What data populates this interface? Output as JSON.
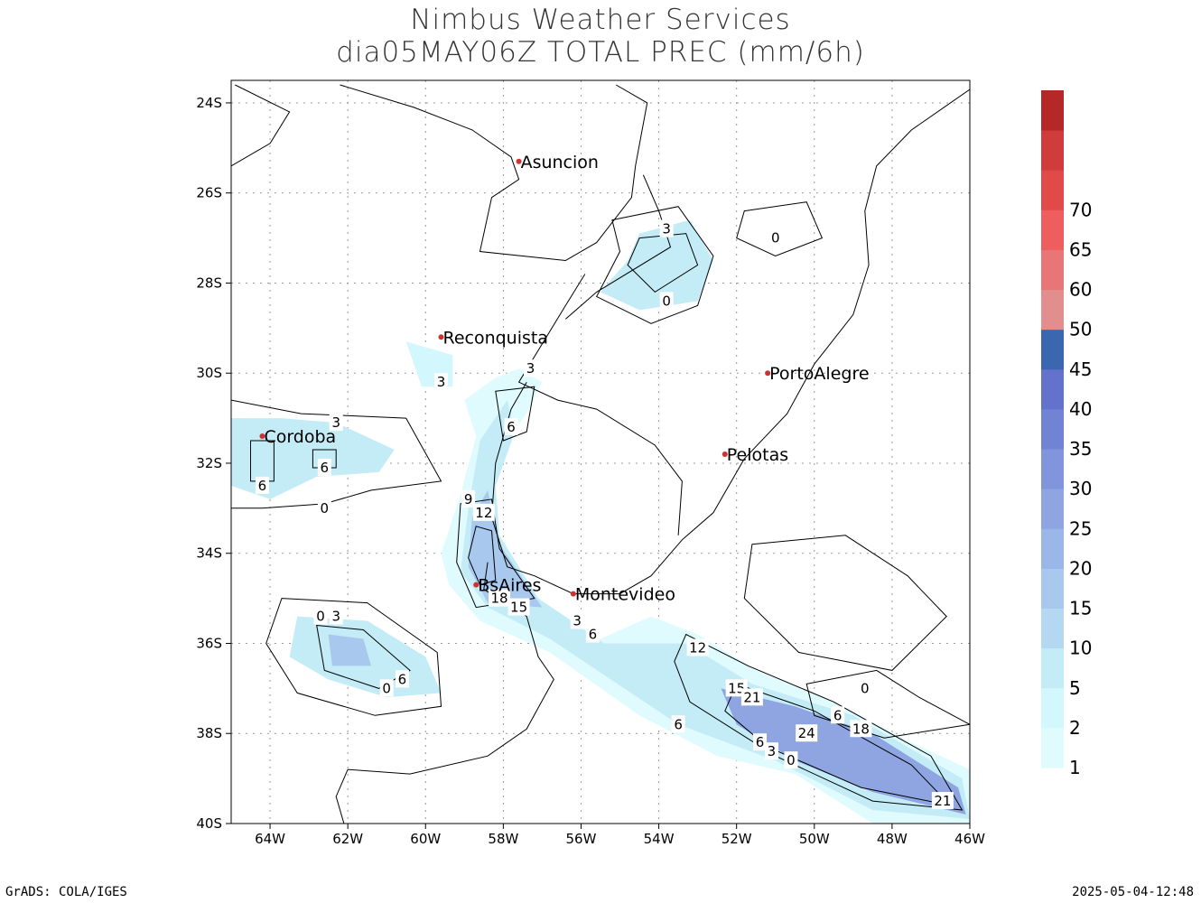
{
  "title": {
    "line1": "Nimbus Weather Services",
    "line2": "dia05MAY06Z TOTAL PREC (mm/6h)"
  },
  "axes": {
    "lat_ticks": [
      "24S",
      "26S",
      "28S",
      "30S",
      "32S",
      "34S",
      "36S",
      "38S",
      "40S"
    ],
    "lon_ticks": [
      "64W",
      "62W",
      "60W",
      "58W",
      "56W",
      "54W",
      "52W",
      "50W",
      "48W",
      "46W"
    ],
    "lat_range": [
      -40,
      -23.5
    ],
    "lon_range": [
      -65,
      -46
    ],
    "grid": "dotted"
  },
  "cities": [
    {
      "name": "Asuncion",
      "lon": -57.6,
      "lat": -25.3
    },
    {
      "name": "Reconquista",
      "lon": -59.6,
      "lat": -29.2
    },
    {
      "name": "PortoAlegre",
      "lon": -51.2,
      "lat": -30.0
    },
    {
      "name": "Cordoba",
      "lon": -64.2,
      "lat": -31.4
    },
    {
      "name": "Pelotas",
      "lon": -52.3,
      "lat": -31.8
    },
    {
      "name": "BsAires",
      "lon": -58.7,
      "lat": -34.7
    },
    {
      "name": "Montevideo",
      "lon": -56.2,
      "lat": -34.9
    }
  ],
  "contour_labels": [
    {
      "text": "3",
      "lon": -53.8,
      "lat": -26.8
    },
    {
      "text": "0",
      "lon": -51.0,
      "lat": -27.0
    },
    {
      "text": "0",
      "lon": -53.8,
      "lat": -28.4
    },
    {
      "text": "3",
      "lon": -57.3,
      "lat": -29.9
    },
    {
      "text": "3",
      "lon": -59.6,
      "lat": -30.2
    },
    {
      "text": "3",
      "lon": -62.3,
      "lat": -31.1
    },
    {
      "text": "6",
      "lon": -57.8,
      "lat": -31.2
    },
    {
      "text": "6",
      "lon": -64.2,
      "lat": -32.5
    },
    {
      "text": "6",
      "lon": -62.6,
      "lat": -32.1
    },
    {
      "text": "0",
      "lon": -62.6,
      "lat": -33.0
    },
    {
      "text": "9",
      "lon": -58.9,
      "lat": -32.8
    },
    {
      "text": "12",
      "lon": -58.5,
      "lat": -33.1
    },
    {
      "text": "18",
      "lon": -58.1,
      "lat": -35.0
    },
    {
      "text": "15",
      "lon": -57.6,
      "lat": -35.2
    },
    {
      "text": "3",
      "lon": -56.1,
      "lat": -35.5
    },
    {
      "text": "6",
      "lon": -55.7,
      "lat": -35.8
    },
    {
      "text": "0",
      "lon": -62.7,
      "lat": -35.4
    },
    {
      "text": "3",
      "lon": -62.3,
      "lat": -35.4
    },
    {
      "text": "6",
      "lon": -60.6,
      "lat": -36.8
    },
    {
      "text": "0",
      "lon": -61.0,
      "lat": -37.0
    },
    {
      "text": "12",
      "lon": -53.0,
      "lat": -36.1
    },
    {
      "text": "15",
      "lon": -52.0,
      "lat": -37.0
    },
    {
      "text": "21",
      "lon": -51.6,
      "lat": -37.2
    },
    {
      "text": "0",
      "lon": -48.7,
      "lat": -37.0
    },
    {
      "text": "6",
      "lon": -49.4,
      "lat": -37.6
    },
    {
      "text": "6",
      "lon": -53.5,
      "lat": -37.8
    },
    {
      "text": "18",
      "lon": -48.8,
      "lat": -37.9
    },
    {
      "text": "24",
      "lon": -50.2,
      "lat": -38.0
    },
    {
      "text": "6",
      "lon": -51.4,
      "lat": -38.2
    },
    {
      "text": "3",
      "lon": -51.1,
      "lat": -38.4
    },
    {
      "text": "0",
      "lon": -50.6,
      "lat": -38.6
    },
    {
      "text": "21",
      "lon": -46.7,
      "lat": -39.5
    }
  ],
  "colorbar": {
    "levels": [
      "1",
      "2",
      "5",
      "10",
      "15",
      "20",
      "25",
      "30",
      "35",
      "40",
      "45",
      "50",
      "55",
      "60",
      "65",
      "70"
    ],
    "labels": [
      "1",
      "2",
      "5",
      "10",
      "15",
      "20",
      "25",
      "30",
      "35",
      "40",
      "45",
      "50",
      "60",
      "65",
      "70"
    ],
    "colors": [
      "#e0fbfe",
      "#d2f7fc",
      "#c4ecf7",
      "#b4d7f2",
      "#a8c8ee",
      "#9bb6e8",
      "#8ea5e2",
      "#8095dc",
      "#7184d4",
      "#6373cc",
      "#3a67b0",
      "#e38e8e",
      "#e97676",
      "#ef5e5e",
      "#e24a4a",
      "#d03c3c",
      "#b42828"
    ]
  },
  "footer": {
    "left": "GrADS: COLA/IGES",
    "right": "2025-05-04-12:48"
  }
}
